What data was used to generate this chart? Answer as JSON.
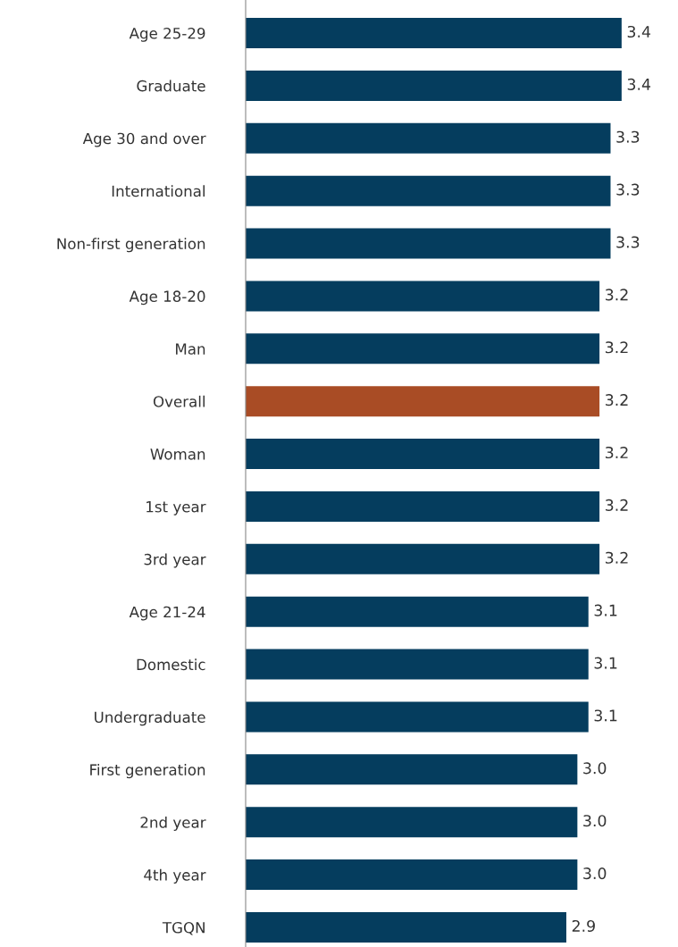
{
  "chart_data": {
    "type": "bar",
    "orientation": "horizontal",
    "categories": [
      "Age 25-29",
      "Graduate",
      "Age 30 and over",
      "International",
      "Non-first generation",
      "Age 18-20",
      "Man",
      "Overall",
      "Woman",
      "1st year",
      "3rd year",
      "Age 21-24",
      "Domestic",
      "Undergraduate",
      "First generation",
      "2nd year",
      "4th year",
      "TGQN"
    ],
    "values": [
      3.4,
      3.4,
      3.3,
      3.3,
      3.3,
      3.2,
      3.2,
      3.2,
      3.2,
      3.2,
      3.2,
      3.1,
      3.1,
      3.1,
      3.0,
      3.0,
      3.0,
      2.9
    ],
    "value_labels": [
      "3.4",
      "3.4",
      "3.3",
      "3.3",
      "3.3",
      "3.2",
      "3.2",
      "3.2",
      "3.2",
      "3.2",
      "3.2",
      "3.1",
      "3.1",
      "3.1",
      "3.0",
      "3.0",
      "3.0",
      "2.9"
    ],
    "colors": [
      "#053d5e",
      "#053d5e",
      "#053d5e",
      "#053d5e",
      "#053d5e",
      "#053d5e",
      "#053d5e",
      "#a94c25",
      "#053d5e",
      "#053d5e",
      "#053d5e",
      "#053d5e",
      "#053d5e",
      "#053d5e",
      "#053d5e",
      "#053d5e",
      "#053d5e",
      "#053d5e"
    ],
    "tick_labels": "y",
    "grid": false,
    "legend": false
  }
}
